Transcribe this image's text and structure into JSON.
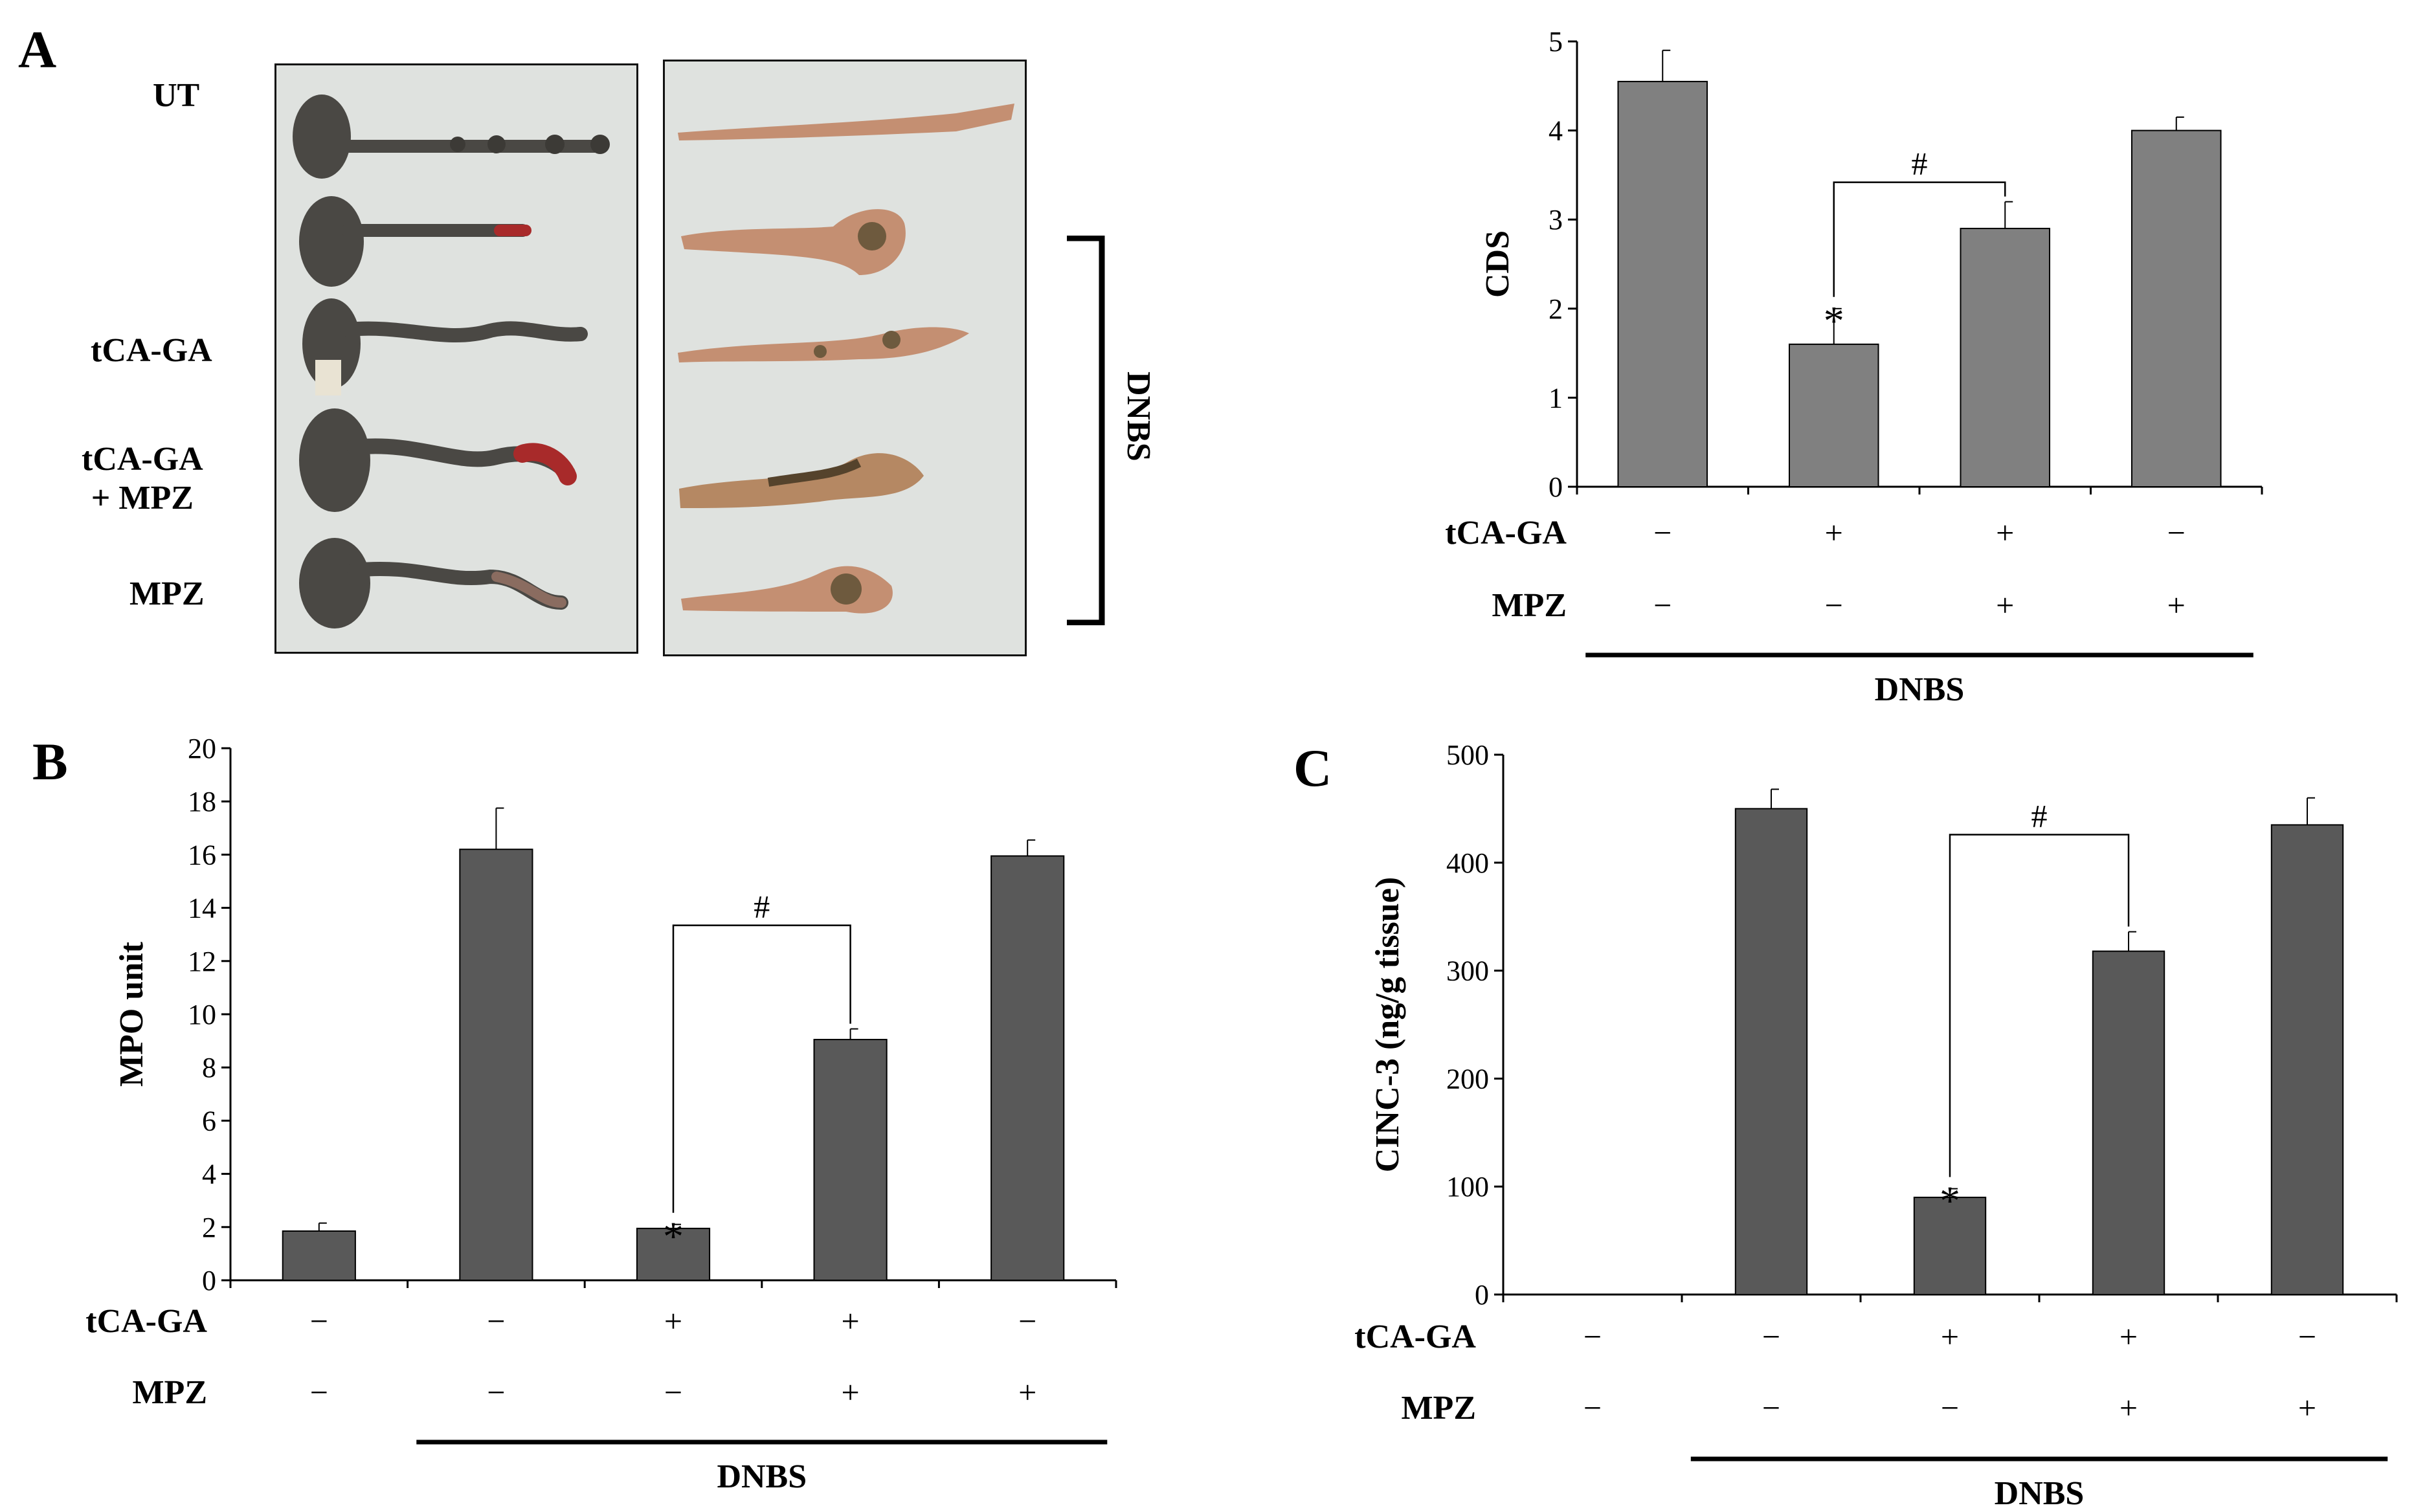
{
  "colors": {
    "bar_a": "#808080",
    "bar_bc": "#595959",
    "colon_dark": "#4a4844",
    "colon_tissue": "#c48f72",
    "photo_bg": "#dfe2df"
  },
  "panel_a": {
    "letter": "A",
    "row_labels": [
      "UT",
      "tCA-GA",
      "tCA-GA\n+ MPZ",
      "MPZ"
    ],
    "bracket_label": "DNBS",
    "photos": [
      "colon-photo-left",
      "colon-photo-right"
    ]
  },
  "panel_b": {
    "letter": "B"
  },
  "panel_c": {
    "letter": "C"
  },
  "chart_data": [
    {
      "id": "A",
      "type": "bar",
      "ylabel": "CDS",
      "ylim": [
        0,
        5
      ],
      "yticks": [
        "0",
        "1",
        "2",
        "3",
        "4",
        "5"
      ],
      "values": [
        4.55,
        1.6,
        2.9,
        4.0
      ],
      "errors": [
        0.35,
        0.4,
        0.3,
        0.15
      ],
      "conditions": [
        {
          "label": "tCA-GA",
          "signs": [
            "−",
            "+",
            "+",
            "−"
          ]
        },
        {
          "label": "MPZ",
          "signs": [
            "−",
            "−",
            "+",
            "+"
          ]
        }
      ],
      "group_label": "DNBS",
      "group_range": [
        0,
        3
      ],
      "annotations": {
        "star": "*",
        "star_index": 1,
        "hash": "#",
        "hash_between": [
          1,
          2
        ]
      }
    },
    {
      "id": "B",
      "type": "bar",
      "ylabel": "MPO unit",
      "ylim": [
        0,
        20
      ],
      "yticks": [
        "0",
        "2",
        "4",
        "6",
        "8",
        "10",
        "12",
        "14",
        "16",
        "18",
        "20"
      ],
      "values": [
        1.85,
        16.2,
        1.95,
        9.05,
        15.95
      ],
      "errors": [
        0.3,
        1.55,
        0.15,
        0.4,
        0.6
      ],
      "conditions": [
        {
          "label": "tCA-GA",
          "signs": [
            "−",
            "−",
            "+",
            "+",
            "−"
          ]
        },
        {
          "label": "MPZ",
          "signs": [
            "−",
            "−",
            "−",
            "+",
            "+"
          ]
        }
      ],
      "group_label": "DNBS",
      "group_range": [
        1,
        4
      ],
      "annotations": {
        "star": "*",
        "star_index": 2,
        "hash": "#",
        "hash_between": [
          2,
          3
        ]
      }
    },
    {
      "id": "C",
      "type": "bar",
      "ylabel": "CINC-3 (ng/g tissue)",
      "ylim": [
        0,
        500
      ],
      "yticks": [
        "0",
        "100",
        "200",
        "300",
        "400",
        "500"
      ],
      "values": [
        0,
        450,
        90,
        318,
        435
      ],
      "errors": [
        0,
        18,
        8,
        18,
        25
      ],
      "conditions": [
        {
          "label": "tCA-GA",
          "signs": [
            "−",
            "−",
            "+",
            "+",
            "−"
          ]
        },
        {
          "label": "MPZ",
          "signs": [
            "−",
            "−",
            "−",
            "+",
            "+"
          ]
        }
      ],
      "group_label": "DNBS",
      "group_range": [
        1,
        4
      ],
      "annotations": {
        "star": "*",
        "star_index": 2,
        "hash": "#",
        "hash_between": [
          2,
          3
        ]
      }
    }
  ]
}
